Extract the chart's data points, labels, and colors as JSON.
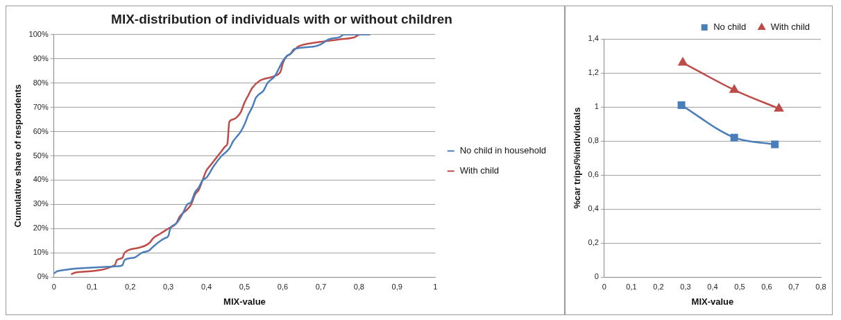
{
  "chart_data": [
    {
      "type": "line",
      "title": "MIX-distribution of individuals with or without children",
      "xlabel": "MIX-value",
      "ylabel": "Cumulative share of respondents",
      "xlim": [
        0,
        1
      ],
      "xticks": [
        {
          "value": 0,
          "label": "0"
        },
        {
          "value": 0.1,
          "label": "0,1"
        },
        {
          "value": 0.2,
          "label": "0,2"
        },
        {
          "value": 0.3,
          "label": "0,3"
        },
        {
          "value": 0.4,
          "label": "0,4"
        },
        {
          "value": 0.5,
          "label": "0,5"
        },
        {
          "value": 0.6,
          "label": "0,6"
        },
        {
          "value": 0.7,
          "label": "0,7"
        },
        {
          "value": 0.8,
          "label": "0,8"
        },
        {
          "value": 0.9,
          "label": "0,9"
        },
        1
      ],
      "ylim": [
        0,
        100
      ],
      "yticks": [
        {
          "value": 0,
          "label": "0%"
        },
        {
          "value": 10,
          "label": "10%"
        },
        {
          "value": 20,
          "label": "20%"
        },
        {
          "value": 30,
          "label": "30%"
        },
        {
          "value": 40,
          "label": "40%"
        },
        {
          "value": 50,
          "label": "50%"
        },
        {
          "value": 60,
          "label": "60%"
        },
        {
          "value": 70,
          "label": "70%"
        },
        {
          "value": 80,
          "label": "80%"
        },
        {
          "value": 90,
          "label": "90%"
        },
        {
          "value": 100,
          "label": "100%"
        }
      ],
      "grid": "y",
      "legend": "right",
      "marker": "none",
      "series": [
        {
          "name": "No child in household",
          "color": "#4a7ebb",
          "x": [
            0,
            0.01,
            0.17,
            0.18,
            0.185,
            0.21,
            0.23,
            0.25,
            0.26,
            0.28,
            0.29,
            0.3,
            0.305,
            0.32,
            0.33,
            0.34,
            0.35,
            0.36,
            0.37,
            0.38,
            0.39,
            0.4,
            0.42,
            0.44,
            0.46,
            0.47,
            0.48,
            0.49,
            0.5,
            0.51,
            0.52,
            0.53,
            0.55,
            0.56,
            0.58,
            0.59,
            0.6,
            0.61,
            0.62,
            0.63,
            0.68,
            0.7,
            0.72,
            0.75,
            0.76,
            0.83
          ],
          "values": [
            1.5,
            2.5,
            4.5,
            5,
            7,
            8,
            10,
            11,
            12.5,
            15,
            16,
            17,
            20,
            22,
            24,
            27,
            30,
            31,
            35,
            37,
            40,
            41,
            46,
            50,
            53,
            56,
            58,
            60,
            63,
            67,
            70,
            74,
            77,
            80,
            83,
            86,
            89,
            91,
            92,
            94,
            95,
            96,
            98,
            99,
            100,
            100
          ]
        },
        {
          "name": "With child",
          "color": "#be4b48",
          "x": [
            0.045,
            0.06,
            0.16,
            0.165,
            0.18,
            0.185,
            0.22,
            0.25,
            0.26,
            0.28,
            0.3,
            0.32,
            0.33,
            0.35,
            0.36,
            0.37,
            0.38,
            0.39,
            0.4,
            0.41,
            0.42,
            0.43,
            0.44,
            0.45,
            0.455,
            0.46,
            0.47,
            0.48,
            0.49,
            0.5,
            0.51,
            0.52,
            0.54,
            0.58,
            0.595,
            0.6,
            0.61,
            0.62,
            0.64,
            0.66,
            0.7,
            0.75,
            0.79,
            0.8
          ],
          "values": [
            1.2,
            2,
            5,
            7,
            8,
            10,
            12,
            14,
            16,
            18,
            20,
            22,
            25,
            28,
            30,
            34,
            36,
            40,
            44,
            46,
            48,
            50,
            52,
            54,
            55,
            64,
            65,
            66,
            68,
            72,
            75,
            78,
            81,
            83,
            85,
            88,
            91,
            92,
            95,
            96,
            97,
            98,
            99,
            100
          ]
        }
      ]
    },
    {
      "type": "line",
      "xlabel": "MIX-value",
      "ylabel": "%car trips/%individuals",
      "xlim": [
        0,
        0.8
      ],
      "xticks": [
        {
          "value": 0,
          "label": "0"
        },
        {
          "value": 0.1,
          "label": "0,1"
        },
        {
          "value": 0.2,
          "label": "0,2"
        },
        {
          "value": 0.3,
          "label": "0,3"
        },
        {
          "value": 0.4,
          "label": "0,4"
        },
        {
          "value": 0.5,
          "label": "0,5"
        },
        {
          "value": 0.6,
          "label": "0,6"
        },
        {
          "value": 0.7,
          "label": "0,7"
        },
        {
          "value": 0.8,
          "label": "0,8"
        }
      ],
      "ylim": [
        0,
        1.4
      ],
      "yticks": [
        {
          "value": 0,
          "label": "0"
        },
        {
          "value": 0.2,
          "label": "0,2"
        },
        {
          "value": 0.4,
          "label": "0,4"
        },
        {
          "value": 0.6,
          "label": "0,6"
        },
        {
          "value": 0.8,
          "label": "0,8"
        },
        1,
        {
          "value": 1.2,
          "label": "1,2"
        },
        {
          "value": 1.4,
          "label": "1,4"
        }
      ],
      "grid": "y",
      "legend": "top right",
      "series": [
        {
          "name": "No child",
          "color": "#4a7ebb",
          "marker": "square",
          "x": [
            0.285,
            0.48,
            0.63
          ],
          "values": [
            1.01,
            0.82,
            0.78
          ]
        },
        {
          "name": "With child",
          "color": "#be4b48",
          "marker": "triangle",
          "x": [
            0.29,
            0.48,
            0.645
          ],
          "values": [
            1.26,
            1.1,
            0.99
          ]
        }
      ]
    }
  ]
}
